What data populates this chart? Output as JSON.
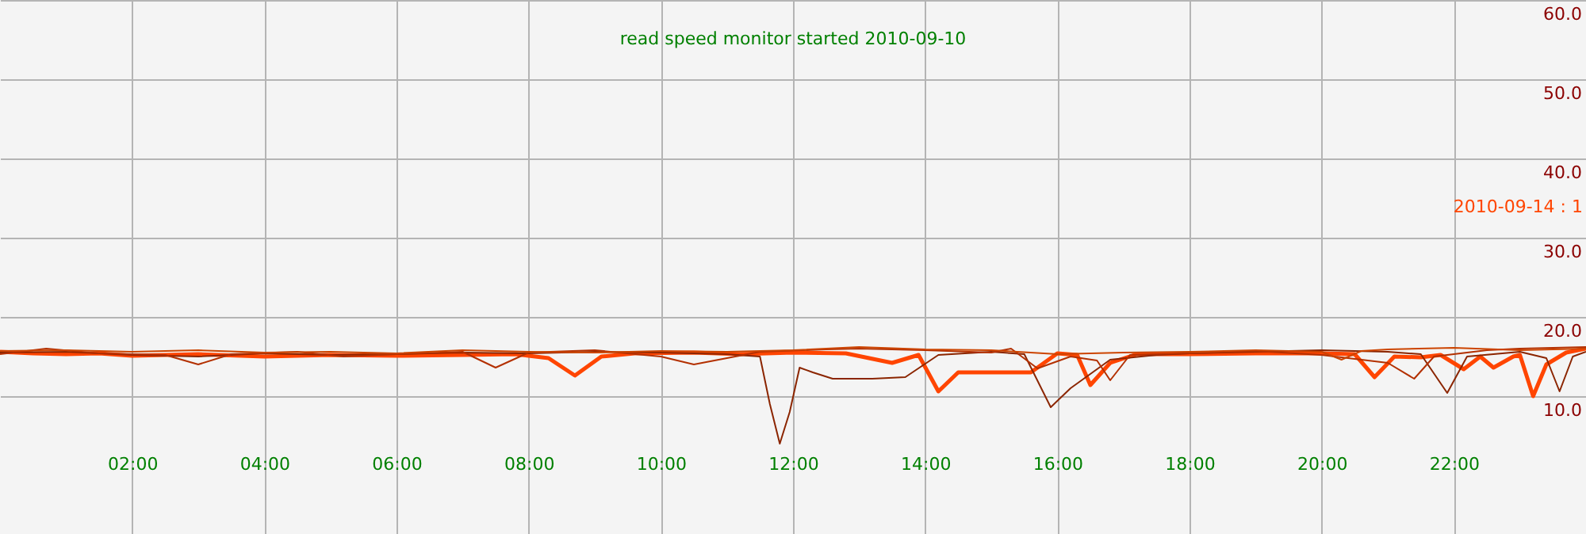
{
  "chart_data": {
    "type": "line",
    "title": "read speed monitor started 2010-09-10",
    "annotations": [
      "2010-09-14 : 1"
    ],
    "xlim": [
      0,
      24
    ],
    "xticks": [
      {
        "value": 2,
        "label": "02:00"
      },
      {
        "value": 4,
        "label": "04:00"
      },
      {
        "value": 6,
        "label": "06:00"
      },
      {
        "value": 8,
        "label": "08:00"
      },
      {
        "value": 10,
        "label": "10:00"
      },
      {
        "value": 12,
        "label": "12:00"
      },
      {
        "value": 14,
        "label": "14:00"
      },
      {
        "value": 16,
        "label": "16:00"
      },
      {
        "value": 18,
        "label": "18:00"
      },
      {
        "value": 20,
        "label": "20:00"
      },
      {
        "value": 22,
        "label": "22:00"
      }
    ],
    "ylim": [
      -7.4,
      60
    ],
    "yticks": [
      {
        "value": 10,
        "label": "10.0"
      },
      {
        "value": 20,
        "label": "20.0"
      },
      {
        "value": 30,
        "label": "30.0"
      },
      {
        "value": 40,
        "label": "40.0"
      },
      {
        "value": 50,
        "label": "50.0"
      },
      {
        "value": 60,
        "label": "60.0"
      }
    ],
    "grid": true,
    "marker": "none",
    "line_style": "solid",
    "series": [
      {
        "color": "#ff4500",
        "x": [
          0,
          0.5,
          1,
          1.5,
          2,
          3,
          4,
          5,
          6,
          7,
          7.8,
          8.3,
          8.7,
          9.1,
          9.6,
          10.5,
          11.2,
          12,
          12.8,
          13.5,
          13.9,
          14.2,
          14.5,
          15,
          15.6,
          16.0,
          16.3,
          16.5,
          16.8,
          17.2,
          18,
          19,
          20,
          20.5,
          20.8,
          21.1,
          21.5,
          21.8,
          22.15,
          22.4,
          22.6,
          22.9,
          23.0,
          23.2,
          23.4,
          23.7,
          24
        ],
        "values": [
          15.6,
          15.4,
          15.3,
          15.4,
          15.1,
          15.3,
          15.0,
          15.2,
          15.1,
          15.2,
          15.3,
          14.8,
          12.6,
          15.0,
          15.4,
          15.5,
          15.3,
          15.5,
          15.4,
          14.2,
          15.2,
          10.6,
          13.0,
          13.0,
          13.0,
          15.4,
          15.2,
          11.4,
          14.2,
          15.3,
          15.3,
          15.4,
          15.4,
          15.3,
          12.4,
          15.0,
          14.9,
          15.2,
          13.4,
          15.0,
          13.6,
          15.0,
          15.2,
          10.0,
          14.0,
          15.5,
          16.0
        ]
      },
      {
        "color": "#8b2500",
        "x": [
          0,
          1,
          2,
          3,
          4,
          5,
          6,
          7,
          8,
          9,
          10,
          11,
          11.5,
          11.65,
          11.8,
          11.95,
          12.1,
          12.3,
          12.6,
          13.2,
          13.7,
          14.2,
          15,
          15.5,
          15.9,
          16.2,
          16.8,
          17.5,
          18,
          19,
          20,
          21,
          21.5,
          21.9,
          22.2,
          23,
          23.4,
          23.6,
          23.8,
          24
        ],
        "values": [
          15.5,
          15.6,
          15.2,
          15.0,
          15.4,
          15.2,
          15.3,
          15.5,
          15.4,
          15.6,
          15.5,
          15.3,
          15.0,
          9.0,
          4.0,
          8.0,
          13.6,
          13.0,
          12.2,
          12.2,
          12.4,
          15.2,
          15.6,
          15.3,
          8.6,
          11.0,
          14.6,
          15.2,
          15.4,
          15.6,
          15.8,
          15.6,
          15.3,
          10.4,
          15.0,
          15.6,
          14.8,
          10.6,
          15.0,
          15.6
        ]
      },
      {
        "color": "#b33000",
        "x": [
          0,
          0.7,
          1.5,
          2.5,
          3.0,
          3.5,
          4.5,
          5.2,
          6,
          7,
          7.5,
          8,
          9,
          10,
          10.5,
          11.5,
          12.5,
          13,
          14,
          15,
          15.3,
          15.7,
          16.2,
          16.6,
          16.8,
          17.1,
          18,
          19,
          20,
          21,
          21.4,
          21.7,
          22.5,
          23,
          24
        ],
        "values": [
          15.3,
          16.0,
          15.4,
          15.2,
          14.0,
          15.3,
          15.6,
          15.0,
          15.3,
          15.6,
          13.6,
          15.5,
          15.8,
          15.0,
          14.0,
          15.6,
          15.9,
          16.0,
          15.8,
          15.5,
          16.0,
          13.5,
          15.0,
          14.5,
          12.0,
          15.2,
          15.4,
          15.7,
          15.2,
          14.2,
          12.2,
          15.0,
          15.8,
          16.0,
          16.2
        ]
      },
      {
        "color": "#cc4400",
        "x": [
          0,
          1,
          2,
          3,
          4,
          5,
          6,
          7,
          8,
          9,
          10,
          11,
          12,
          13,
          14,
          15,
          16,
          17,
          18,
          19,
          20,
          20.3,
          20.6,
          21,
          22,
          23,
          24
        ],
        "values": [
          15.7,
          15.8,
          15.6,
          15.8,
          15.5,
          15.6,
          15.4,
          15.8,
          15.6,
          15.5,
          15.7,
          15.6,
          15.8,
          16.2,
          15.9,
          15.8,
          15.3,
          15.5,
          15.6,
          15.8,
          15.6,
          14.6,
          15.7,
          15.9,
          16.1,
          15.8,
          16.0
        ]
      }
    ]
  }
}
